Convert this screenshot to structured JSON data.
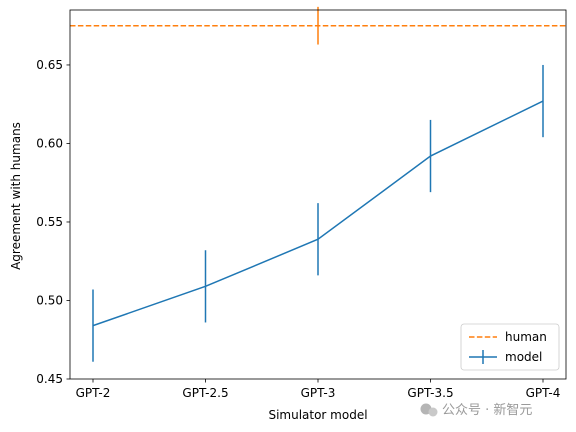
{
  "chart_data": {
    "type": "line",
    "xlabel": "Simulator model",
    "ylabel": "Agreement with humans",
    "categories": [
      "GPT-2",
      "GPT-2.5",
      "GPT-3",
      "GPT-3.5",
      "GPT-4"
    ],
    "ylim": [
      0.45,
      0.685
    ],
    "yticks": [
      0.45,
      0.5,
      0.55,
      0.6,
      0.65
    ],
    "ytick_labels": [
      "0.45",
      "0.50",
      "0.55",
      "0.60",
      "0.65"
    ],
    "grid": false,
    "legend_position": "bottom-right",
    "series": [
      {
        "name": "model",
        "color": "#1f77b4",
        "style": "solid",
        "values": [
          0.484,
          0.509,
          0.539,
          0.592,
          0.627
        ],
        "errors": [
          0.023,
          0.023,
          0.023,
          0.023,
          0.023
        ]
      }
    ],
    "reference": {
      "name": "human",
      "color": "#ff7f0e",
      "style": "dashed",
      "value": 0.675,
      "error": 0.012,
      "error_at": "GPT-3"
    }
  },
  "watermark": "公众号 · 新智元"
}
